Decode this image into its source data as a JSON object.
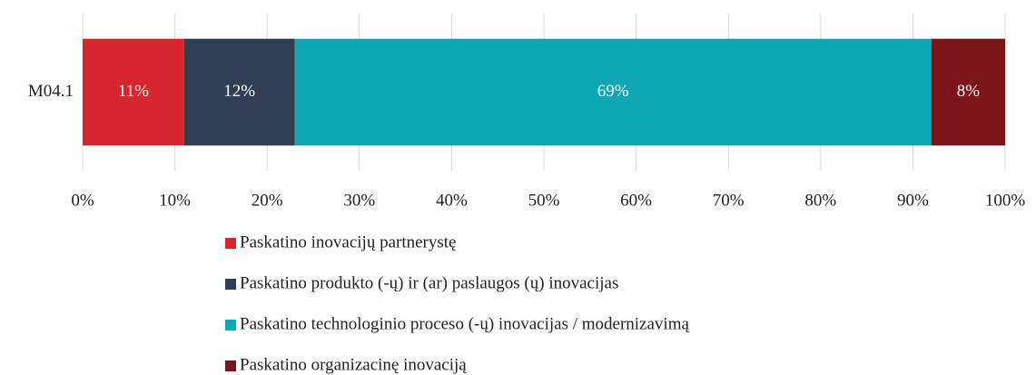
{
  "chart_data": {
    "type": "stacked-bar",
    "orientation": "horizontal",
    "categories": [
      "M04.1"
    ],
    "series": [
      {
        "name": "Paskatino inovacijų partnerystę",
        "color": "#d9262e",
        "values": [
          11
        ],
        "value_labels": [
          "11%"
        ]
      },
      {
        "name": "Paskatino produkto (-ų) ir (ar) paslaugos (ų) inovacijas",
        "color": "#2f3e55",
        "values": [
          12
        ],
        "value_labels": [
          "12%"
        ]
      },
      {
        "name": "Paskatino technologinio proceso (-ų) inovacijas / modernizavimą",
        "color": "#0ea8b5",
        "values": [
          69
        ],
        "value_labels": [
          "69%"
        ]
      },
      {
        "name": "Paskatino organizacinę inovaciją",
        "color": "#7b1519",
        "values": [
          8
        ],
        "value_labels": [
          "8%"
        ]
      }
    ],
    "xlim": [
      0,
      100
    ],
    "xticks": [
      {
        "value": 0,
        "label": "0%"
      },
      {
        "value": 10,
        "label": "10%"
      },
      {
        "value": 20,
        "label": "20%"
      },
      {
        "value": 30,
        "label": "30%"
      },
      {
        "value": 40,
        "label": "40%"
      },
      {
        "value": 50,
        "label": "50%"
      },
      {
        "value": 60,
        "label": "60%"
      },
      {
        "value": 70,
        "label": "70%"
      },
      {
        "value": 80,
        "label": "80%"
      },
      {
        "value": 90,
        "label": "90%"
      },
      {
        "value": 100,
        "label": "100%"
      }
    ],
    "grid": true,
    "legend": "bottom"
  }
}
